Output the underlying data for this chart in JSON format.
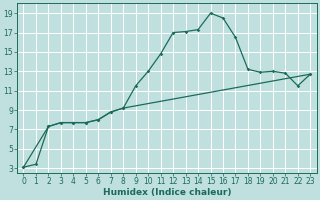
{
  "xlabel": "Humidex (Indice chaleur)",
  "bg_color": "#c0e0e0",
  "grid_color": "#ffffff",
  "line_color": "#1a6b5a",
  "xlim": [
    -0.5,
    23.5
  ],
  "ylim": [
    2.5,
    20
  ],
  "xticks": [
    0,
    1,
    2,
    3,
    4,
    5,
    6,
    7,
    8,
    9,
    10,
    11,
    12,
    13,
    14,
    15,
    16,
    17,
    18,
    19,
    20,
    21,
    22,
    23
  ],
  "yticks": [
    3,
    5,
    7,
    9,
    11,
    13,
    15,
    17,
    19
  ],
  "line1_x": [
    0,
    1,
    2,
    3,
    4,
    5,
    6,
    7,
    8,
    9,
    10,
    11,
    12,
    13,
    14,
    15,
    16,
    17,
    18,
    19,
    20,
    21,
    22,
    23
  ],
  "line1_y": [
    3.1,
    3.4,
    7.3,
    7.7,
    7.7,
    7.7,
    8.0,
    8.8,
    9.2,
    11.5,
    13.0,
    14.8,
    17.0,
    17.1,
    17.3,
    19.0,
    18.5,
    16.5,
    13.2,
    12.9,
    13.0,
    12.8,
    11.5,
    12.7
  ],
  "line2_x": [
    0,
    2,
    3,
    4,
    5,
    6,
    7,
    8,
    23
  ],
  "line2_y": [
    3.1,
    7.3,
    7.7,
    7.7,
    7.7,
    8.0,
    8.8,
    9.2,
    12.7
  ]
}
